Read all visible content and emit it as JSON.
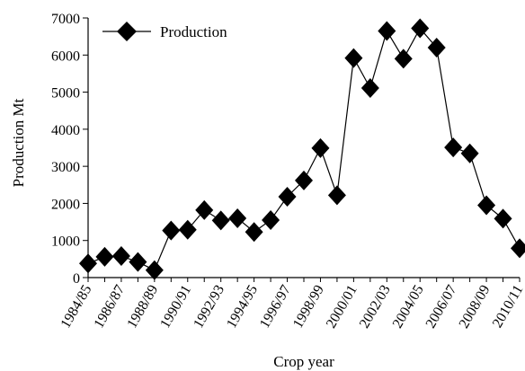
{
  "chart_data": {
    "type": "line",
    "title": "",
    "xlabel": "Crop year",
    "ylabel": "Production Mt",
    "ylim": [
      0,
      7000
    ],
    "yticks": [
      0,
      1000,
      2000,
      3000,
      4000,
      5000,
      6000,
      7000
    ],
    "x_tick_labels": [
      "1984/85",
      "1986/87",
      "1988/89",
      "1990/91",
      "1992/93",
      "1994/95",
      "1996/97",
      "1998/99",
      "2000/01",
      "2002/03",
      "2004/05",
      "2006/07",
      "2008/09",
      "2010/11"
    ],
    "categories": [
      "1984/85",
      "1985/86",
      "1986/87",
      "1987/88",
      "1988/89",
      "1989/90",
      "1990/91",
      "1991/92",
      "1992/93",
      "1993/94",
      "1994/95",
      "1995/96",
      "1996/97",
      "1997/98",
      "1998/99",
      "1999/00",
      "2000/01",
      "2001/02",
      "2002/03",
      "2003/04",
      "2004/05",
      "2005/06",
      "2006/07",
      "2007/08",
      "2008/09",
      "2009/10",
      "2010/11"
    ],
    "series": [
      {
        "name": "Production",
        "values": [
          380,
          560,
          580,
          420,
          200,
          1270,
          1290,
          1820,
          1540,
          1600,
          1230,
          1550,
          2180,
          2620,
          3490,
          2220,
          5920,
          5110,
          6650,
          5900,
          6720,
          6200,
          3510,
          3350,
          1950,
          1590,
          790
        ]
      }
    ],
    "legend": {
      "position": "top-left",
      "marker": "diamond"
    },
    "grid": false,
    "colors": {
      "line": "#000000",
      "marker": "#000000"
    }
  }
}
